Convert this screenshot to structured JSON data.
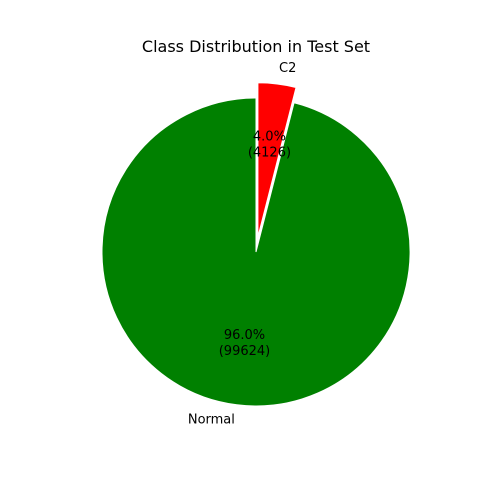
{
  "chart_data": {
    "type": "pie",
    "title": "Class Distribution in Test Set",
    "slices": [
      {
        "label": "C2",
        "value": 4126,
        "percent_label": "4.0%",
        "count_label": "(4126)",
        "color": "#ff0000",
        "exploded": true
      },
      {
        "label": "Normal",
        "value": 99624,
        "percent_label": "96.0%",
        "count_label": "(99624)",
        "color": "#008000",
        "exploded": false
      }
    ],
    "start_angle_deg": 90,
    "direction": "clockwise",
    "slice_edge_color": "#ffffff",
    "legend": "none"
  }
}
